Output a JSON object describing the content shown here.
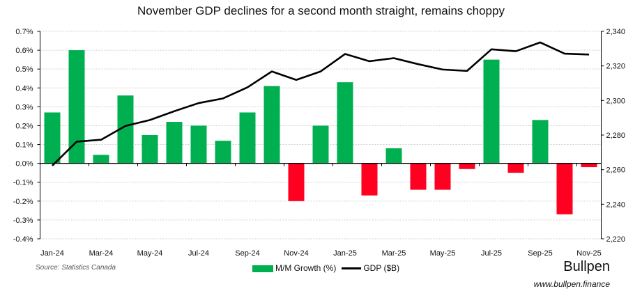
{
  "chart_data": {
    "type": "bar+line",
    "title": "November GDP declines for a second month straight, remains choppy",
    "categories": [
      "Jan-24",
      "Feb-24",
      "Mar-24",
      "Apr-24",
      "May-24",
      "Jun-24",
      "Jul-24",
      "Aug-24",
      "Sep-24",
      "Oct-24",
      "Nov-24",
      "Dec-24",
      "Jan-25",
      "Feb-25",
      "Mar-25",
      "Apr-25",
      "May-25",
      "Jun-25",
      "Jul-25",
      "Aug-25",
      "Sep-25",
      "Oct-25",
      "Nov-25"
    ],
    "x_tick_labels": [
      "Jan-24",
      "Mar-24",
      "May-24",
      "Jul-24",
      "Sep-24",
      "Nov-24",
      "Jan-25",
      "Mar-25",
      "May-25",
      "Jul-25",
      "Sep-25",
      "Nov-25"
    ],
    "series": [
      {
        "name": "M/M Growth (%)",
        "type": "bar",
        "axis": "left",
        "color_positive": "#00b050",
        "color_negative": "#ff0020",
        "values": [
          0.27,
          0.6,
          0.045,
          0.36,
          0.15,
          0.22,
          0.2,
          0.12,
          0.27,
          0.41,
          -0.2,
          0.2,
          0.43,
          -0.17,
          0.08,
          -0.14,
          -0.14,
          -0.03,
          0.55,
          -0.05,
          0.23,
          -0.27,
          -0.02
        ]
      },
      {
        "name": "GDP ($B)",
        "type": "line",
        "axis": "right",
        "color": "#000000",
        "values": [
          2262.3,
          2276.2,
          2277.3,
          2285.3,
          2288.7,
          2293.8,
          2298.5,
          2301.2,
          2307.6,
          2316.8,
          2311.9,
          2316.8,
          2326.9,
          2322.7,
          2324.5,
          2321.0,
          2317.9,
          2317.1,
          2329.6,
          2328.5,
          2333.6,
          2327.1,
          2326.6
        ]
      }
    ],
    "left_axis": {
      "range": [
        -0.4,
        0.7
      ],
      "ticks": [
        "0.7%",
        "0.6%",
        "0.5%",
        "0.4%",
        "0.3%",
        "0.2%",
        "0.1%",
        "0.0%",
        "-0.1%",
        "-0.2%",
        "-0.3%",
        "-0.4%"
      ]
    },
    "right_axis": {
      "range": [
        2220,
        2340
      ],
      "ticks": [
        "2,340",
        "2,320",
        "2,300",
        "2,280",
        "2,260",
        "2,240",
        "2,220"
      ]
    },
    "grid": "horizontal dotted",
    "legend_placement": "bottom"
  },
  "source": "Source: Statistics Canada",
  "logo": "Bullpen",
  "url": "www.bullpen.finance"
}
